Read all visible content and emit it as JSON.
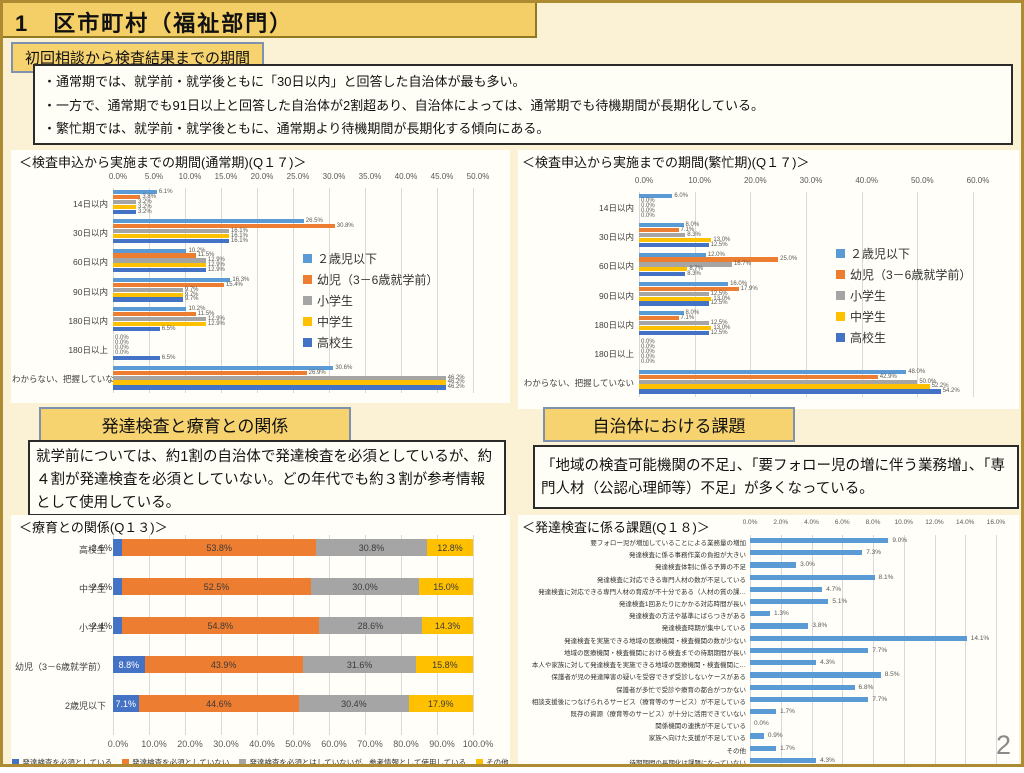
{
  "header": {
    "title": "1　区市町村（福祉部門）"
  },
  "page_number": "2",
  "colors": {
    "page_bg": "#FBF1D5",
    "gold_box": "#F4CE66",
    "border_gold": "#AD8B33",
    "series_blue": "#5B9BD5",
    "series_orange": "#ED7D31",
    "series_gray": "#A5A5A5",
    "series_yellow": "#FFC000",
    "series_darkblue": "#4472C4"
  },
  "sections": {
    "period": {
      "label": "初回相談から検査結果までの期間",
      "bullets": [
        "・通常期では、就学前・就学後ともに「30日以内」と回答した自治体が最も多い。",
        "・一方で、通常期でも91日以上と回答した自治体が2割超あり、自治体によっては、通常期でも待機期間が長期化している。",
        "・繁忙期では、就学前・就学後ともに、通常期より待機期間が長期化する傾向にある。"
      ]
    },
    "relation": {
      "label": "発達検査と療育との関係",
      "text": "就学前については、約1割の自治体で発達検査を必須としているが、約４割が発達検査を必須としていない。どの年代でも約３割が参考情報として使用している。"
    },
    "issues": {
      "label": "自治体における課題",
      "text": "「地域の検査可能機関の不足」、「要フォロー児の増に伴う業務増」、「専門人材（公認心理師等）不足」が多くなっている。"
    }
  },
  "chart_data": [
    {
      "type": "bar",
      "orientation": "horizontal-grouped",
      "title": "＜検査申込から実施までの期間(通常期)(Q１７)＞",
      "xlim": [
        0,
        50
      ],
      "xticks": [
        "0.0%",
        "5.0%",
        "10.0%",
        "15.0%",
        "20.0%",
        "25.0%",
        "30.0%",
        "35.0%",
        "40.0%",
        "45.0%",
        "50.0%"
      ],
      "legend_position": "middle-right",
      "categories": [
        "14日以内",
        "30日以内",
        "60日以内",
        "90日以内",
        "180日以内",
        "180日以上",
        "わからない、把握していない"
      ],
      "series": [
        {
          "name": "２歳児以下",
          "color": "#5B9BD5",
          "values": [
            6.1,
            26.5,
            10.2,
            16.3,
            10.2,
            0.0,
            30.6
          ]
        },
        {
          "name": "幼児（3－6歳就学前）",
          "color": "#ED7D31",
          "values": [
            3.8,
            30.8,
            11.5,
            15.4,
            11.5,
            0.0,
            26.9
          ]
        },
        {
          "name": "小学生",
          "color": "#A5A5A5",
          "values": [
            3.2,
            16.1,
            12.9,
            9.7,
            12.9,
            0.0,
            46.2
          ]
        },
        {
          "name": "中学生",
          "color": "#FFC000",
          "values": [
            3.2,
            16.1,
            12.9,
            9.7,
            12.9,
            0.0,
            46.2
          ]
        },
        {
          "name": "高校生",
          "color": "#4472C4",
          "values": [
            3.2,
            16.1,
            12.9,
            9.7,
            6.5,
            6.5,
            46.2
          ]
        }
      ]
    },
    {
      "type": "bar",
      "orientation": "horizontal-grouped",
      "title": "＜検査申込から実施までの期間(繁忙期)(Q１７)＞",
      "xlim": [
        0,
        60
      ],
      "xticks": [
        "0.0%",
        "10.0%",
        "20.0%",
        "30.0%",
        "40.0%",
        "50.0%",
        "60.0%"
      ],
      "legend_position": "middle-right",
      "categories": [
        "14日以内",
        "30日以内",
        "60日以内",
        "90日以内",
        "180日以内",
        "180日以上",
        "わからない、把握していない"
      ],
      "series": [
        {
          "name": "２歳児以下",
          "color": "#5B9BD5",
          "values": [
            6.0,
            8.0,
            12.0,
            16.0,
            8.0,
            0.0,
            48.0
          ]
        },
        {
          "name": "幼児（3－6歳就学前）",
          "color": "#ED7D31",
          "values": [
            0.0,
            7.1,
            25.0,
            17.9,
            7.1,
            0.0,
            42.9
          ]
        },
        {
          "name": "小学生",
          "color": "#A5A5A5",
          "values": [
            0.0,
            8.3,
            16.7,
            12.5,
            12.5,
            0.0,
            50.0
          ]
        },
        {
          "name": "中学生",
          "color": "#FFC000",
          "values": [
            0.0,
            13.0,
            8.7,
            13.0,
            13.0,
            0.0,
            52.2
          ]
        },
        {
          "name": "高校生",
          "color": "#4472C4",
          "values": [
            0.0,
            12.5,
            8.3,
            12.5,
            12.5,
            0.0,
            54.2
          ]
        }
      ]
    },
    {
      "type": "bar",
      "orientation": "horizontal-stacked",
      "title": "＜療育との関係(Q１３)＞",
      "xlim": [
        0,
        100
      ],
      "xticks": [
        "0.0%",
        "10.0%",
        "20.0%",
        "30.0%",
        "40.0%",
        "50.0%",
        "60.0%",
        "70.0%",
        "80.0%",
        "90.0%",
        "100.0%"
      ],
      "legend_position": "bottom",
      "categories": [
        "高校生",
        "中学生",
        "小学生",
        "幼児（3－6歳就学前）",
        "2歳児以下"
      ],
      "series": [
        {
          "name": "発達検査を必須としている",
          "color": "#4472C4",
          "values": [
            2.6,
            2.5,
            2.4,
            8.8,
            7.1
          ]
        },
        {
          "name": "発達検査を必須としていない",
          "color": "#ED7D31",
          "values": [
            53.8,
            52.5,
            54.8,
            43.9,
            44.6
          ]
        },
        {
          "name": "発達検査を必須とはしていないが、参考情報として使用している",
          "color": "#A5A5A5",
          "values": [
            30.8,
            30.0,
            28.6,
            31.6,
            30.4
          ]
        },
        {
          "name": "その他",
          "color": "#FFC000",
          "values": [
            12.8,
            15.0,
            14.3,
            15.8,
            17.9
          ]
        }
      ]
    },
    {
      "type": "bar",
      "orientation": "horizontal",
      "title": "＜発達検査に係る課題(Q１８)＞",
      "xlim": [
        0,
        16
      ],
      "xticks": [
        "0.0%",
        "2.0%",
        "4.0%",
        "6.0%",
        "8.0%",
        "10.0%",
        "12.0%",
        "14.0%",
        "16.0%"
      ],
      "bar_color": "#5B9BD5",
      "categories": [
        "要フォロー児が増加していることによる業務量の増加",
        "発達検査に係る事務作業の負担が大きい",
        "発達検査体制に係る予算の不足",
        "発達検査に対応できる専門人材の数が不足している",
        "発達検査に対応できる専門人材の育成が不十分である（人材の質の課…",
        "発達検査1回あたりにかかる対応時間が長い",
        "発達検査の方法や基準にばらつきがある",
        "発達検査時期が集中している",
        "発達検査を実施できる地域の医療機関・検査機関の数が少ない",
        "地域の医療機関・検査機関における検査までの待期期間が長い",
        "本人や家族に対して発達検査を実施できる地域の医療機関・検査機関に…",
        "保護者が児の発達障害の疑いを受容できず受診しないケースがある",
        "保護者が多忙で受診や療育の都合がつかない",
        "相談支援後につなげられるサービス（療育等のサービス）が不足している",
        "既存の資源（療育等のサービス）が十分に活用できていない",
        "関係機関の連携が不足している",
        "家族へ向けた支援が不足している",
        "その他",
        "待期期間の長期化は課題になっていない"
      ],
      "values": [
        9.0,
        7.3,
        3.0,
        8.1,
        4.7,
        5.1,
        1.3,
        3.8,
        14.1,
        7.7,
        4.3,
        8.5,
        6.8,
        7.7,
        1.7,
        0.0,
        0.9,
        1.7,
        4.3
      ]
    }
  ]
}
